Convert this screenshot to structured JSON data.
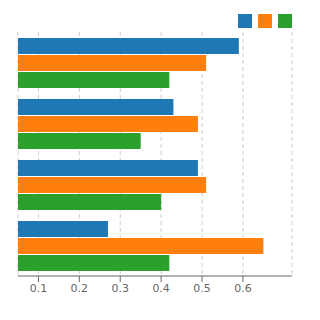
{
  "chart_data": {
    "type": "bar",
    "orientation": "horizontal",
    "categories": [
      null,
      null,
      null,
      null
    ],
    "series": [
      {
        "color": "#1f77b4",
        "values": [
          0.59,
          0.43,
          0.49,
          0.27
        ]
      },
      {
        "color": "#ff7f0e",
        "values": [
          0.51,
          0.49,
          0.51,
          0.65
        ]
      },
      {
        "color": "#2ca02c",
        "values": [
          0.42,
          0.35,
          0.4,
          0.42
        ]
      }
    ],
    "xlim": [
      0.05,
      0.72
    ],
    "xticks": [
      0.1,
      0.2,
      0.3,
      0.4,
      0.5,
      0.6
    ],
    "grid": true,
    "legend": "upper right",
    "tick_labels": "x"
  }
}
